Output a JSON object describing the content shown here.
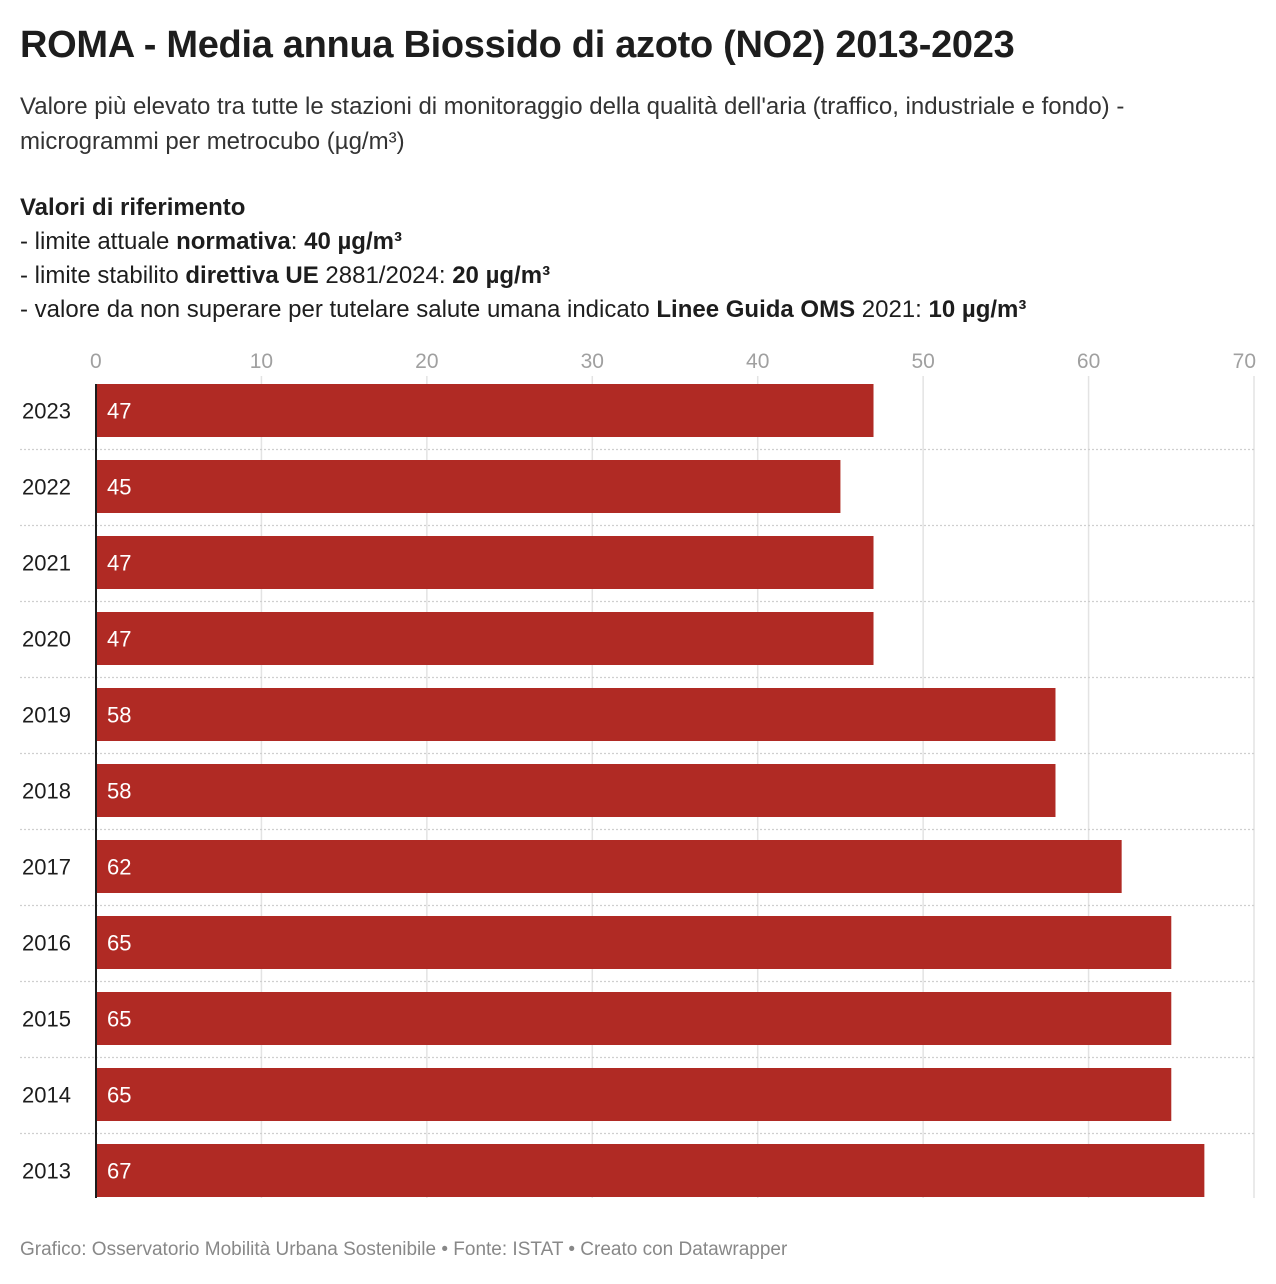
{
  "title": "ROMA - Media annua Biossido di azoto (NO2) 2013-2023",
  "subtitle": "Valore più elevato tra tutte le stazioni di monitoraggio della qualità dell'aria (traffico, industriale e fondo) - microgrammi per metrocubo (µg/m³)",
  "references": {
    "heading": "Valori di riferimento",
    "line1": {
      "pre": "- limite attuale ",
      "bold1": "normativa",
      "mid": ": ",
      "bold2": "40 µg/m³"
    },
    "line2": {
      "pre": "- limite stabilito ",
      "bold1": "direttiva UE",
      "mid": " 2881/2024: ",
      "bold2": "20 µg/m³"
    },
    "line3": {
      "pre": "- valore da non superare per tutelare salute umana indicato ",
      "bold1": "Linee Guida OMS",
      "mid": " 2021: ",
      "bold2": "10 µg/m³"
    }
  },
  "footer": "Grafico: Osservatorio Mobilità Urbana Sostenibile • Fonte: ISTAT • Creato con Datawrapper",
  "colors": {
    "bar": "#b02a24",
    "grid": "#e3e3e3",
    "row_separator": "#cfcfcf",
    "tick_text": "#a0a0a0"
  },
  "chart_data": {
    "type": "bar",
    "orientation": "horizontal",
    "categories": [
      "2023",
      "2022",
      "2021",
      "2020",
      "2019",
      "2018",
      "2017",
      "2016",
      "2015",
      "2014",
      "2013"
    ],
    "values": [
      47,
      45,
      47,
      47,
      58,
      58,
      62,
      65,
      65,
      65,
      67
    ],
    "xlim": [
      0,
      70
    ],
    "xticks": [
      0,
      10,
      20,
      30,
      40,
      50,
      60,
      70
    ],
    "grid": true,
    "xaxis_position": "top",
    "data_labels": "inside-left"
  }
}
